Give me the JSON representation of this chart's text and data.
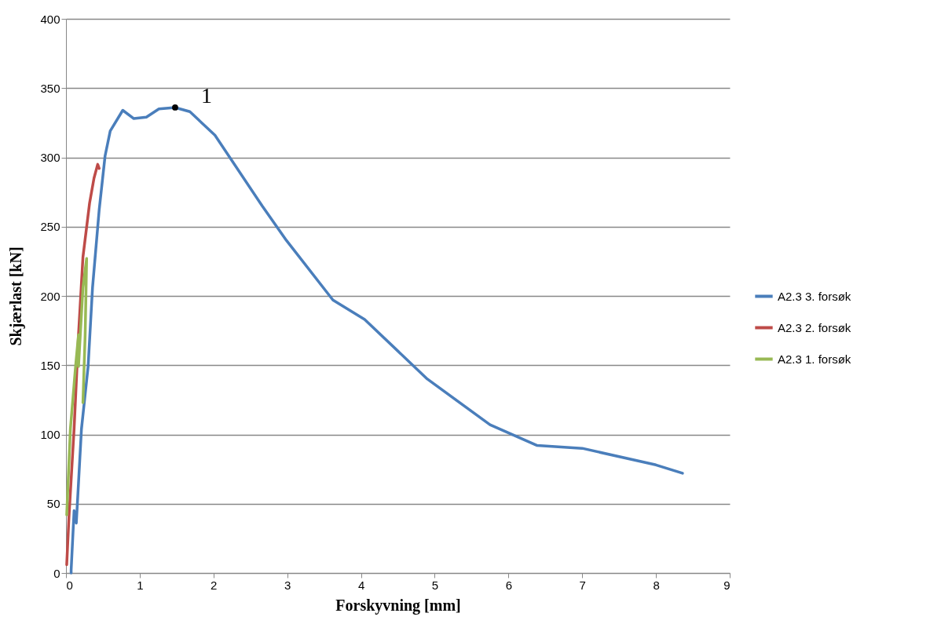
{
  "chart_data": {
    "type": "line",
    "xlabel": "Forskyvning [mm]",
    "ylabel": "Skjærlast [kN]",
    "xlim": [
      0,
      9
    ],
    "xticks": [
      0,
      1,
      2,
      3,
      4,
      5,
      6,
      7,
      8,
      9
    ],
    "ylim": [
      0,
      400
    ],
    "yticks": [
      0,
      50,
      100,
      150,
      200,
      250,
      300,
      350,
      400
    ],
    "grid": "y",
    "legend": "right",
    "marker": "none",
    "line_style": "solid",
    "series": [
      {
        "name": "A2.3 3. forsøk",
        "color": "#4a7ebb",
        "x": [
          0.07,
          0.07,
          0.11,
          0.14,
          0.21,
          0.3,
          0.36,
          0.45,
          0.53,
          0.6,
          0.77,
          0.92,
          1.09,
          1.26,
          1.48,
          1.68,
          2.02,
          2.66,
          2.99,
          3.62,
          4.05,
          4.9,
          5.75,
          6.39,
          7,
          8,
          8.36
        ],
        "values": [
          0,
          2,
          45,
          36,
          104,
          149,
          206,
          262,
          301,
          319,
          334,
          328,
          329,
          335,
          336,
          333,
          316,
          265,
          240,
          197,
          183,
          140,
          107,
          92,
          90,
          78,
          72
        ]
      },
      {
        "name": "A2.3 2. forsøk",
        "color": "#be4b48",
        "x": [
          0.01,
          0.04,
          0.11,
          0.17,
          0.23,
          0.32,
          0.38,
          0.43,
          0.45
        ],
        "values": [
          6,
          40,
          104,
          172,
          228,
          267,
          285,
          295,
          292
        ]
      },
      {
        "name": "A2.3 1. forsøk",
        "color": "#98b954",
        "x": [
          0.01,
          0.06,
          0.13,
          0.17,
          0.17,
          0.23,
          0.28,
          0.26,
          0.23
        ],
        "values": [
          42,
          104,
          149,
          172,
          149,
          206,
          227,
          172,
          123
        ]
      }
    ],
    "annotations": [
      {
        "text": "1",
        "x": 1.48,
        "y": 336
      }
    ]
  }
}
